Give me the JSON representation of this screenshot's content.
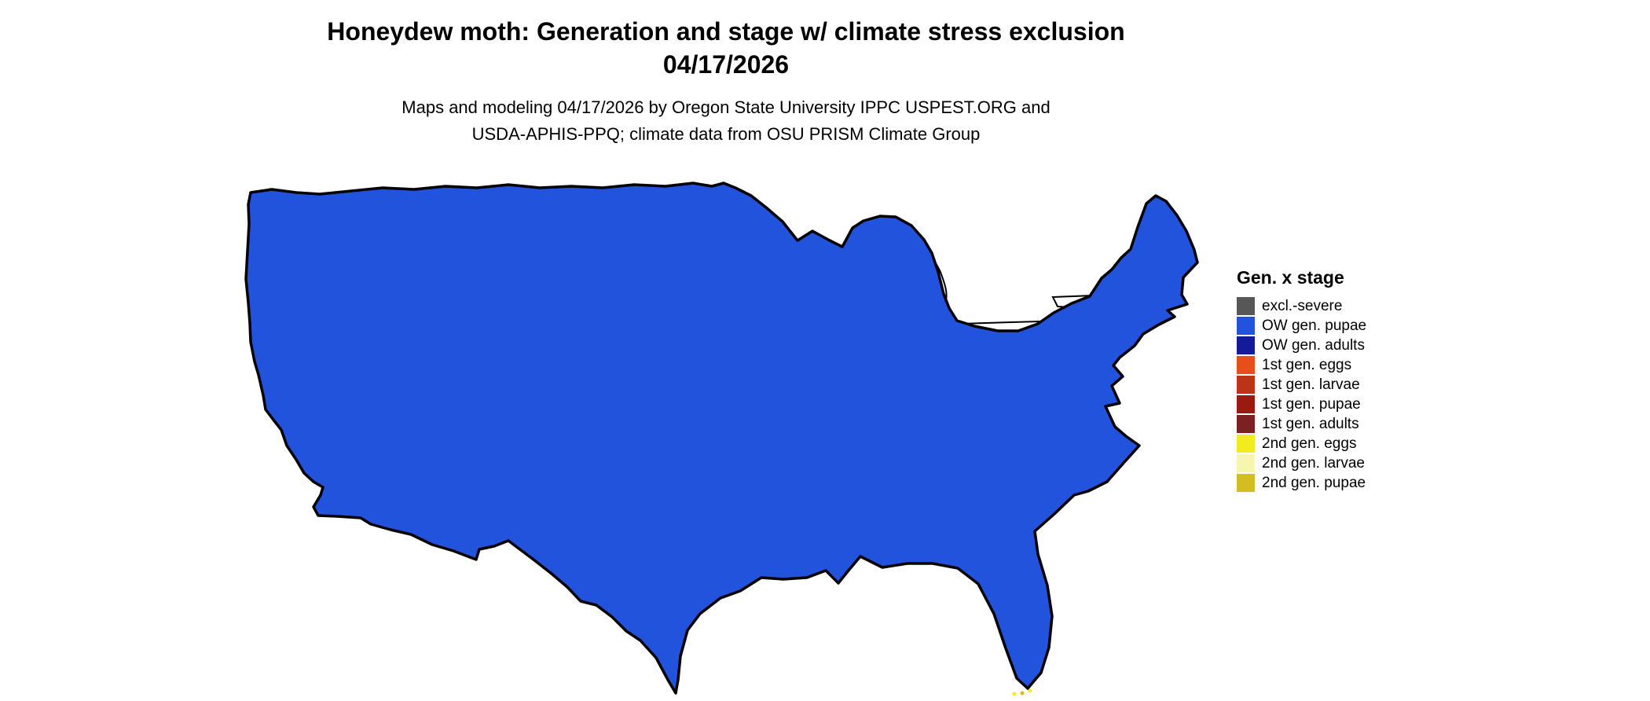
{
  "header": {
    "title_line1": "Honeydew moth: Generation and stage w/ climate stress exclusion",
    "title_line2": "04/17/2026",
    "subtitle_line1": "Maps and modeling 04/17/2026 by Oregon State University IPPC USPEST.ORG and",
    "subtitle_line2": "USDA-APHIS-PPQ; climate data from OSU PRISM Climate Group"
  },
  "legend": {
    "title": "Gen. x stage",
    "items": [
      {
        "key": "excl_severe",
        "label": "excl.-severe",
        "color": "#575757"
      },
      {
        "key": "ow_pupae",
        "label": "OW gen. pupae",
        "color": "#2253DD"
      },
      {
        "key": "ow_adults",
        "label": "OW gen. adults",
        "color": "#131B9B"
      },
      {
        "key": "g1_eggs",
        "label": "1st gen. eggs",
        "color": "#E84E1B"
      },
      {
        "key": "g1_larvae",
        "label": "1st gen. larvae",
        "color": "#BC3318"
      },
      {
        "key": "g1_pupae",
        "label": "1st gen. pupae",
        "color": "#9A1A10"
      },
      {
        "key": "g1_adults",
        "label": "1st gen. adults",
        "color": "#7C2022"
      },
      {
        "key": "g2_eggs",
        "label": "2nd gen. eggs",
        "color": "#F2EC1E"
      },
      {
        "key": "g2_larvae",
        "label": "2nd gen. larvae",
        "color": "#F6F6AF"
      },
      {
        "key": "g2_pupae",
        "label": "2nd gen. pupae",
        "color": "#D2BE20"
      }
    ]
  }
}
